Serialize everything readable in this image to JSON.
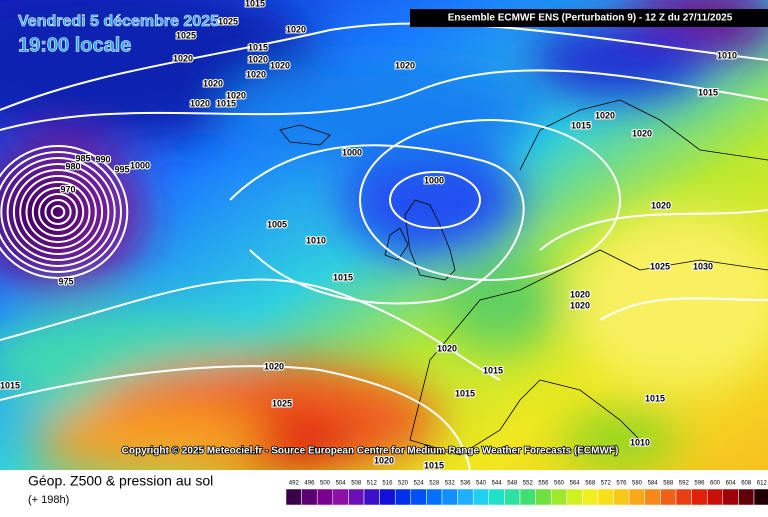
{
  "header": {
    "date": "Vendredi 5 décembre 2025",
    "time": "19:00 locale",
    "model": "Ensemble ECMWF ENS  (Perturbation 9)  -  12 Z du 27/11/2025"
  },
  "copyright": "Copyright © 2025 Meteociel.fr - Source European Centre for Medium-Range Weather Forecasts (ECMWF)",
  "footer": {
    "title": "Géop. Z500 & pression au sol",
    "subtitle": "(+ 198h)"
  },
  "scale": {
    "labels": [
      "492",
      "496",
      "500",
      "504",
      "508",
      "512",
      "516",
      "520",
      "524",
      "528",
      "532",
      "536",
      "540",
      "544",
      "548",
      "552",
      "556",
      "560",
      "564",
      "568",
      "572",
      "576",
      "580",
      "584",
      "588",
      "592",
      "596",
      "600",
      "604",
      "608",
      "612"
    ]
  },
  "isobar_labels": [
    "1015",
    "1025",
    "1025",
    "1020",
    "1020",
    "1015",
    "1020",
    "1020",
    "1020",
    "1020",
    "1020",
    "1020",
    "1015",
    "1020",
    "1015",
    "1010",
    "1015",
    "1020",
    "1020",
    "1000",
    "985",
    "990",
    "995",
    "1000",
    "980",
    "970",
    "975",
    "1000",
    "1005",
    "1010",
    "1015",
    "1020",
    "1025",
    "1030",
    "1020",
    "1020",
    "1020",
    "1015",
    "1015",
    "1020",
    "1025",
    "1015",
    "1020",
    "1015",
    "1015",
    "1010"
  ]
}
